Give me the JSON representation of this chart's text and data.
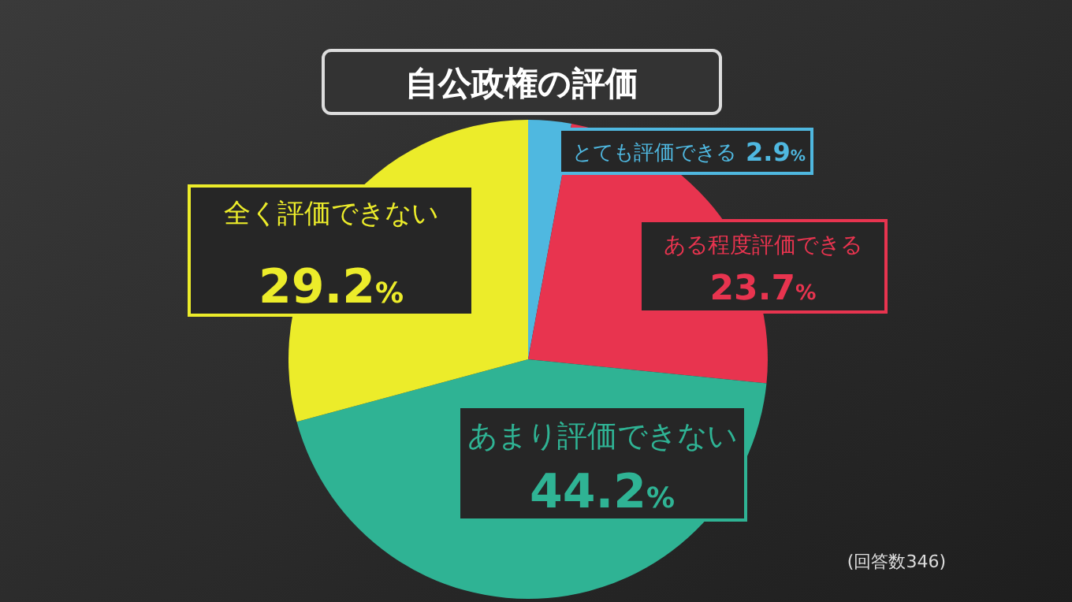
{
  "chart_data": {
    "type": "pie",
    "title": "自公政権の評価",
    "categories": [
      "とても評価できる",
      "ある程度評価できる",
      "あまり評価できない",
      "全く評価できない"
    ],
    "values": [
      2.9,
      23.7,
      44.2,
      29.2
    ],
    "colors": [
      "#4fb8e0",
      "#e8344f",
      "#2fb394",
      "#ecec2a"
    ],
    "value_labels": [
      "2.9%",
      "23.7%",
      "44.2%",
      "29.2%"
    ],
    "annotations": [
      "(回答数346)"
    ]
  }
}
